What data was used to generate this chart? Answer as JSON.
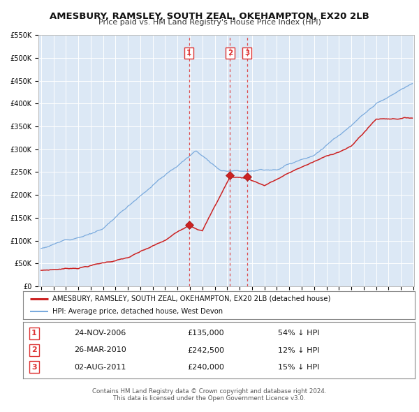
{
  "title": "AMESBURY, RAMSLEY, SOUTH ZEAL, OKEHAMPTON, EX20 2LB",
  "subtitle": "Price paid vs. HM Land Registry's House Price Index (HPI)",
  "background_color": "#ffffff",
  "plot_bg_color": "#dce8f5",
  "x_start_year": 1995,
  "x_end_year": 2025,
  "y_max": 550000,
  "y_ticks": [
    0,
    50000,
    100000,
    150000,
    200000,
    250000,
    300000,
    350000,
    400000,
    450000,
    500000,
    550000
  ],
  "y_tick_labels": [
    "£0",
    "£50K",
    "£100K",
    "£150K",
    "£200K",
    "£250K",
    "£300K",
    "£350K",
    "£400K",
    "£450K",
    "£500K",
    "£550K"
  ],
  "hpi_color": "#7aaadd",
  "price_color": "#cc2222",
  "sale_marker_color": "#cc2222",
  "vline_color": "#dd3333",
  "transaction_lines": [
    {
      "x": 2006.92,
      "label": "1",
      "price": 135000
    },
    {
      "x": 2010.23,
      "label": "2",
      "price": 242500
    },
    {
      "x": 2011.59,
      "label": "3",
      "price": 240000
    }
  ],
  "legend_red_label": "AMESBURY, RAMSLEY, SOUTH ZEAL, OKEHAMPTON, EX20 2LB (detached house)",
  "legend_blue_label": "HPI: Average price, detached house, West Devon",
  "footer_line1": "Contains HM Land Registry data © Crown copyright and database right 2024.",
  "footer_line2": "This data is licensed under the Open Government Licence v3.0.",
  "table_rows": [
    [
      "1",
      "24-NOV-2006",
      "£135,000",
      "54% ↓ HPI"
    ],
    [
      "2",
      "26-MAR-2010",
      "£242,500",
      "12% ↓ HPI"
    ],
    [
      "3",
      "02-AUG-2011",
      "£240,000",
      "15% ↓ HPI"
    ]
  ],
  "hpi_seed": 12,
  "price_seed": 7
}
